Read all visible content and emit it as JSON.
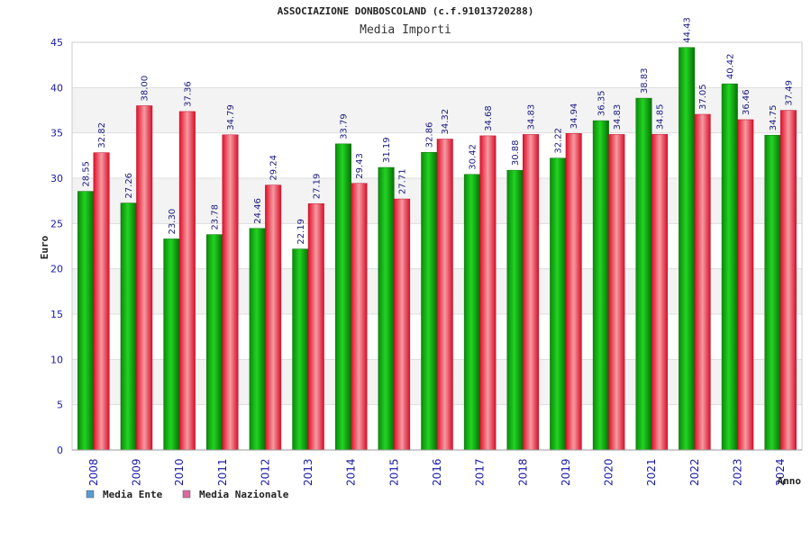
{
  "chart_data": {
    "type": "bar",
    "title": "ASSOCIAZIONE DONBOSCOLAND (c.f.91013720288)",
    "subtitle": "Media Importi",
    "xlabel": "Anno",
    "ylabel": "Euro",
    "ylim": [
      0,
      45
    ],
    "yticks": [
      0,
      5,
      10,
      15,
      20,
      25,
      30,
      35,
      40,
      45
    ],
    "grid": true,
    "legend_position": "bottom-left",
    "categories": [
      "2008",
      "2009",
      "2010",
      "2011",
      "2012",
      "2013",
      "2014",
      "2015",
      "2016",
      "2017",
      "2018",
      "2019",
      "2020",
      "2021",
      "2022",
      "2023",
      "2024"
    ],
    "series": [
      {
        "name": "Media Ente",
        "legend_color": "#5b9bd5",
        "bar_color": "#18b318",
        "values": [
          28.55,
          27.26,
          23.3,
          23.78,
          24.46,
          22.19,
          33.79,
          31.19,
          32.86,
          30.42,
          30.88,
          32.22,
          36.35,
          38.83,
          44.43,
          40.42,
          34.75
        ],
        "labels": [
          "28.55",
          "27.26",
          "23.30",
          "23.78",
          "24.46",
          "22.19",
          "33.79",
          "31.19",
          "32.86",
          "30.42",
          "30.88",
          "32.22",
          "36.35",
          "38.83",
          "44.43",
          "40.42",
          "34.75"
        ]
      },
      {
        "name": "Media Nazionale",
        "legend_color": "#d96b9e",
        "bar_color": "#e8283a",
        "values": [
          32.82,
          38.0,
          37.36,
          34.79,
          29.24,
          27.19,
          29.43,
          27.71,
          34.32,
          34.68,
          34.83,
          34.94,
          34.83,
          34.85,
          37.05,
          36.46,
          37.49
        ],
        "labels": [
          "32.82",
          "38.00",
          "37.36",
          "34.79",
          "29.24",
          "27.19",
          "29.43",
          "27.71",
          "34.32",
          "34.68",
          "34.83",
          "34.94",
          "34.83",
          "34.85",
          "37.05",
          "36.46",
          "37.49"
        ]
      }
    ]
  }
}
